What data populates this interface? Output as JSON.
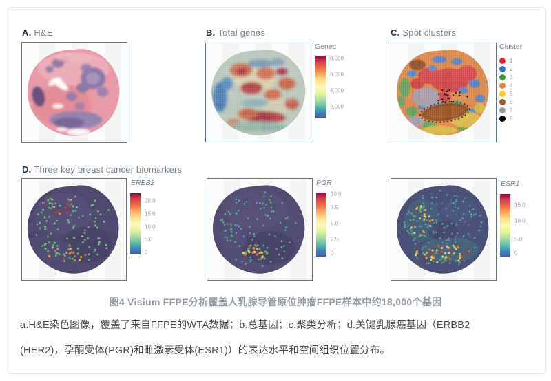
{
  "panelA": {
    "letter": "A.",
    "title": "H&E"
  },
  "panelB": {
    "letter": "B.",
    "title": "Total genes",
    "colorbar": {
      "title": "Genes",
      "ticks": [
        "8,000",
        "6,000",
        "4,000",
        "2,000"
      ]
    }
  },
  "panelC": {
    "letter": "C.",
    "title": "Spot clusters",
    "legend": {
      "title": "Cluster",
      "items": [
        {
          "label": "1",
          "color": "#e6242b"
        },
        {
          "label": "2",
          "color": "#3079bd"
        },
        {
          "label": "3",
          "color": "#36a437"
        },
        {
          "label": "4",
          "color": "#f57e20"
        },
        {
          "label": "5",
          "color": "#fdd017"
        },
        {
          "label": "6",
          "color": "#9a5f2a"
        },
        {
          "label": "7",
          "color": "#9c9c9c"
        },
        {
          "label": "8",
          "color": "#000000"
        }
      ]
    }
  },
  "panelD": {
    "letter": "D.",
    "title": "Three key breast cancer biomarkers",
    "erbb2": {
      "gene": "ERBB2",
      "ticks": [
        "20.0",
        "15.0",
        "10.0",
        "5.0",
        "0"
      ]
    },
    "pgr": {
      "gene": "PGR",
      "ticks": [
        "10.0",
        "7.5",
        "5.0",
        "2.5",
        "0"
      ]
    },
    "esr1": {
      "gene": "ESR1",
      "ticks": [
        "15.0",
        "10.0",
        "5.0",
        "0"
      ]
    }
  },
  "colormap_high_to_low": [
    "#9e0142",
    "#d53e4f",
    "#f46d43",
    "#fdae61",
    "#fee08b",
    "#ffffbf",
    "#e6f598",
    "#abdda4",
    "#66c2a5",
    "#3288bd",
    "#5e4fa2"
  ],
  "caption": "图4 Visium FFPE分析覆盖人乳腺导管原位肿瘤FFPE样本中约18,000个基因",
  "description": {
    "line1": "a.H&E染色图像，覆盖了来自FFPE的WTA数据；b.总基因；c.聚类分析；d.关键乳腺癌基因（ERBB2",
    "line2": "(HER2)，孕酮受体(PGR)和雌激素受体(ESR1)）的表达水平和空间组织位置分布。"
  }
}
